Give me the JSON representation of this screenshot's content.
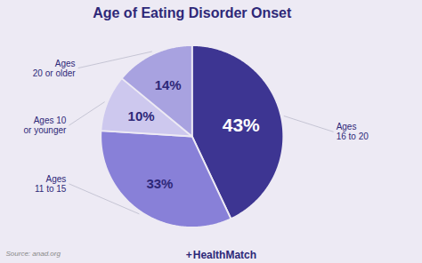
{
  "chart_data": {
    "type": "pie",
    "title": "Age of Eating Disorder Onset",
    "categories": [
      "Ages\n16 to 20",
      "Ages\n11 to 15",
      "Ages 10\nor younger",
      "Ages\n20 or older"
    ],
    "values": [
      43,
      33,
      10,
      14
    ],
    "value_labels": [
      "43%",
      "33%",
      "10%",
      "14%"
    ],
    "colors": [
      "#3d3592",
      "#8880d8",
      "#cdc8ee",
      "#a8a2e0"
    ],
    "data_labels": true,
    "annotations": [
      "Source: anad.org",
      "+",
      "HealthMatch"
    ]
  }
}
